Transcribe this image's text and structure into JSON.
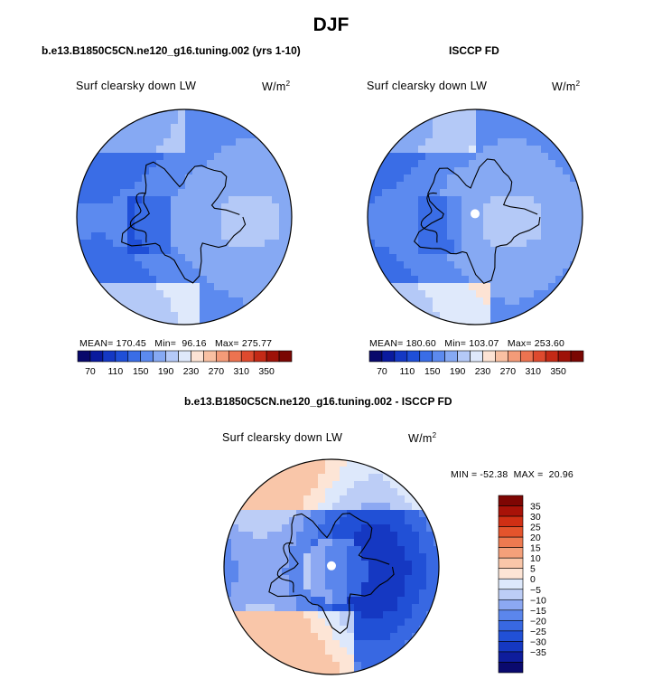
{
  "season": "DJF",
  "panels": [
    {
      "title": "b.e13.B1850C5CN.ne120_g16.tuning.002 (yrs 1-10)",
      "subtitle": "Surf clearsky down LW",
      "units_base": "W/m",
      "units_exp": "2",
      "stats": "MEAN= 170.45   Min=  96.16   Max= 275.77"
    },
    {
      "title": "ISCCP FD",
      "subtitle": "Surf clearsky down LW",
      "units_base": "W/m",
      "units_exp": "2",
      "stats": "MEAN= 180.60   Min= 103.07   Max= 253.60"
    },
    {
      "title": "b.e13.B1850C5CN.ne120_g16.tuning.002 - ISCCP FD",
      "subtitle": "Surf clearsky down LW",
      "units_base": "W/m",
      "units_exp": "2",
      "stats": "MIN = -52.38  MAX =  20.96"
    }
  ],
  "colors": {
    "abs_scale": [
      "#08086b",
      "#0a1a9e",
      "#1438c4",
      "#1f4fd8",
      "#3a6de6",
      "#5c8aef",
      "#86a9f3",
      "#b4c9f7",
      "#dfe9fb",
      "#fde3d4",
      "#f9c0a2",
      "#f49b78",
      "#ec7350",
      "#de4a2e",
      "#c42a16",
      "#9e1208",
      "#7a0703"
    ],
    "diff_scale": [
      "#0a0a6e",
      "#0e1d9c",
      "#1538c2",
      "#2150d6",
      "#3868e2",
      "#5b86ec",
      "#8ca8f2",
      "#bccdf6",
      "#dde8fb",
      "#fde5d6",
      "#f9c6a9",
      "#f4a07a",
      "#ee7a50",
      "#e4542c",
      "#d02f14",
      "#a81208",
      "#7e0603"
    ]
  },
  "chart_data": [
    {
      "type": "heatmap",
      "projection": "north polar stereographic",
      "title": "b.e13.B1850C5CN.ne120_g16.tuning.002 (yrs 1-10)",
      "subtitle": "Surf clearsky down LW",
      "units": "W/m2",
      "mean": 170.45,
      "min": 96.16,
      "max": 275.77,
      "colorbar_labels": [
        "70",
        "110",
        "150",
        "190",
        "230",
        "270",
        "310",
        "350"
      ],
      "contour_levels": [
        70,
        90,
        110,
        130,
        150,
        170,
        190,
        210,
        230,
        250,
        270,
        290,
        310,
        330,
        350
      ]
    },
    {
      "type": "heatmap",
      "projection": "north polar stereographic",
      "title": "ISCCP FD",
      "subtitle": "Surf clearsky down LW",
      "units": "W/m2",
      "mean": 180.6,
      "min": 103.07,
      "max": 253.6,
      "colorbar_labels": [
        "70",
        "110",
        "150",
        "190",
        "230",
        "270",
        "310",
        "350"
      ],
      "contour_levels": [
        70,
        90,
        110,
        130,
        150,
        170,
        190,
        210,
        230,
        250,
        270,
        290,
        310,
        330,
        350
      ]
    },
    {
      "type": "heatmap",
      "projection": "north polar stereographic",
      "title": "b.e13.B1850C5CN.ne120_g16.tuning.002 - ISCCP FD",
      "subtitle": "Surf clearsky down LW",
      "units": "W/m2",
      "min": -52.38,
      "max": 20.96,
      "colorbar_labels": [
        "35",
        "30",
        "25",
        "20",
        "15",
        "10",
        "5",
        "0",
        "−5",
        "−10",
        "−15",
        "−20",
        "−25",
        "−30",
        "−35"
      ],
      "contour_levels": [
        -35,
        -30,
        -25,
        -20,
        -15,
        -10,
        -5,
        0,
        5,
        10,
        15,
        20,
        25,
        30,
        35
      ]
    }
  ]
}
